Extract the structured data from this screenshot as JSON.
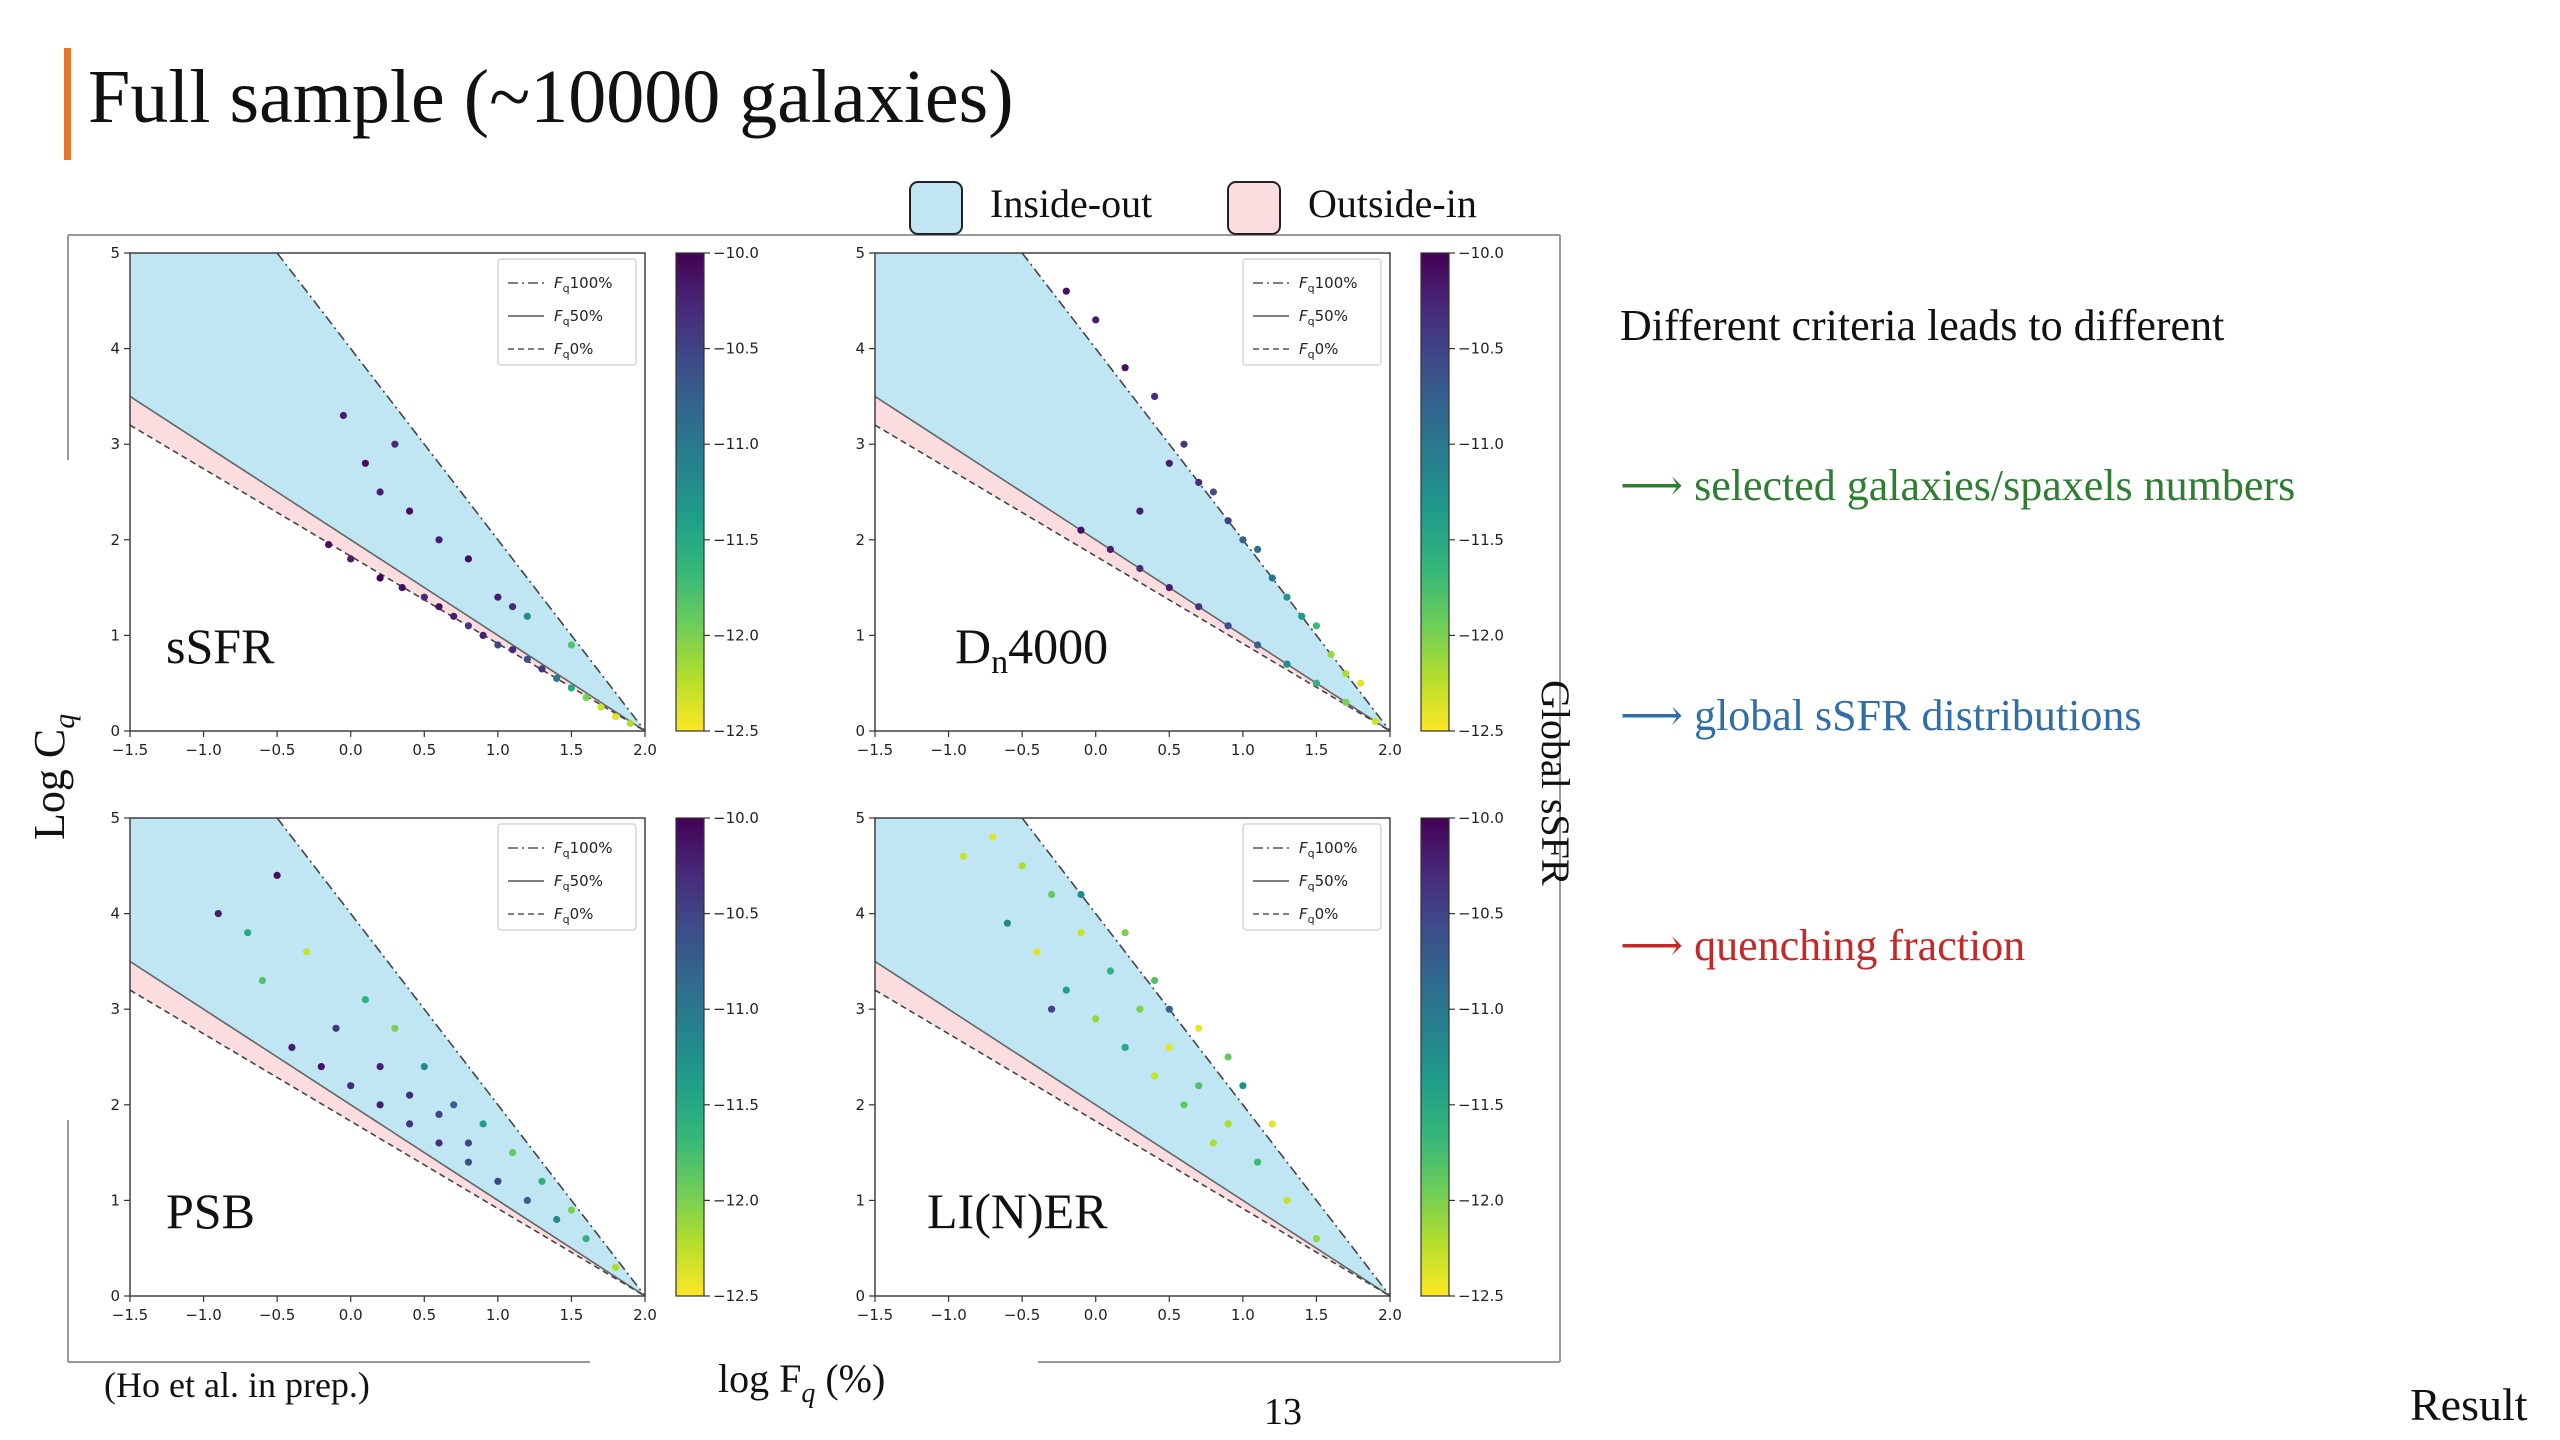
{
  "slide": {
    "title": "Full sample (~10000 galaxies)",
    "citation": "(Ho et al. in prep.)",
    "page_number": "13",
    "section": "Result",
    "accent_color": "#e8772e"
  },
  "bullets": [
    {
      "text": "Different criteria leads to different",
      "color": "#111111"
    },
    {
      "text": "⟶ selected galaxies/spaxels numbers",
      "color": "#2e7d32"
    },
    {
      "text": "⟶ global sSFR distributions",
      "color": "#2f6ea8"
    },
    {
      "text": "⟶ quenching fraction",
      "color": "#c62828"
    }
  ],
  "figure": {
    "legend": [
      {
        "label": "Inside-out",
        "color": "#bfe6f2"
      },
      {
        "label": "Outside-in",
        "color": "#fbdde0"
      }
    ],
    "ylabel": "Log C",
    "ylabel_sub": "q",
    "xlabel": "log F",
    "xlabel_sub": "q",
    "xlabel_unit": " (%)",
    "colorbar_label": "Global sSFR"
  },
  "chart_data": {
    "type": "scatter",
    "x_range": [
      -1.5,
      2.0
    ],
    "y_range": [
      0,
      5
    ],
    "x_ticks": [
      "−1.5",
      "−1.0",
      "−0.5",
      "0.0",
      "0.5",
      "1.0",
      "1.5",
      "2.0"
    ],
    "y_ticks": [
      "0",
      "1",
      "2",
      "3",
      "4",
      "5"
    ],
    "color_range": [
      -12.5,
      -10.0
    ],
    "colorbar_ticks": [
      "−10.0",
      "−10.5",
      "−11.0",
      "−11.5",
      "−12.0",
      "−12.5"
    ],
    "line_legend": [
      {
        "label": "F",
        "sub": "q",
        "suffix": "100%",
        "style": "dashdot"
      },
      {
        "label": "F",
        "sub": "q",
        "suffix": "50%",
        "style": "solid"
      },
      {
        "label": "F",
        "sub": "q",
        "suffix": "0%",
        "style": "dashed"
      }
    ],
    "lines": {
      "fq100": {
        "x": [
          -0.5,
          2.0
        ],
        "y": [
          5.0,
          0.0
        ]
      },
      "fq50": {
        "x": [
          -1.5,
          2.0
        ],
        "y": [
          3.5,
          0.0
        ]
      },
      "fq0": {
        "x": [
          -1.5,
          2.0
        ],
        "y": [
          3.2,
          0.0
        ]
      }
    },
    "panels": [
      {
        "name": "sSFR",
        "points": [
          [
            -0.15,
            1.95,
            -10.1
          ],
          [
            0.0,
            1.8,
            -10.2
          ],
          [
            0.2,
            1.6,
            -10.0
          ],
          [
            0.35,
            1.5,
            -10.1
          ],
          [
            0.5,
            1.4,
            -10.3
          ],
          [
            0.6,
            1.3,
            -10.1
          ],
          [
            0.7,
            1.2,
            -10.2
          ],
          [
            0.8,
            1.1,
            -10.4
          ],
          [
            0.9,
            1.0,
            -10.2
          ],
          [
            1.0,
            0.9,
            -10.5
          ],
          [
            1.1,
            0.85,
            -10.3
          ],
          [
            1.2,
            0.75,
            -10.6
          ],
          [
            1.3,
            0.65,
            -10.4
          ],
          [
            1.4,
            0.55,
            -11.0
          ],
          [
            1.5,
            0.45,
            -11.5
          ],
          [
            1.6,
            0.35,
            -12.0
          ],
          [
            1.7,
            0.25,
            -12.3
          ],
          [
            1.8,
            0.15,
            -12.4
          ],
          [
            1.9,
            0.08,
            -12.2
          ],
          [
            1.0,
            1.4,
            -10.2
          ],
          [
            1.1,
            1.3,
            -10.3
          ],
          [
            0.8,
            1.8,
            -10.1
          ],
          [
            0.6,
            2.0,
            -10.2
          ],
          [
            0.4,
            2.3,
            -10.1
          ],
          [
            0.2,
            2.5,
            -10.2
          ],
          [
            0.1,
            2.8,
            -10.1
          ],
          [
            0.3,
            3.0,
            -10.3
          ],
          [
            -0.05,
            3.3,
            -10.2
          ],
          [
            1.2,
            1.2,
            -11.2
          ],
          [
            1.5,
            0.9,
            -11.8
          ]
        ]
      },
      {
        "name": "Dn4000",
        "points": [
          [
            -0.1,
            2.1,
            -10.1
          ],
          [
            0.1,
            1.9,
            -10.2
          ],
          [
            0.3,
            1.7,
            -10.3
          ],
          [
            0.5,
            1.5,
            -10.2
          ],
          [
            0.7,
            1.3,
            -10.4
          ],
          [
            0.9,
            1.1,
            -10.6
          ],
          [
            1.1,
            0.9,
            -10.8
          ],
          [
            1.3,
            0.7,
            -11.2
          ],
          [
            1.5,
            0.5,
            -11.6
          ],
          [
            1.7,
            0.3,
            -12.0
          ],
          [
            1.9,
            0.1,
            -12.3
          ],
          [
            0.5,
            2.8,
            -10.2
          ],
          [
            0.7,
            2.6,
            -10.3
          ],
          [
            0.9,
            2.2,
            -10.5
          ],
          [
            1.1,
            1.9,
            -10.9
          ],
          [
            1.3,
            1.4,
            -11.3
          ],
          [
            1.5,
            1.1,
            -11.7
          ],
          [
            1.6,
            0.8,
            -12.1
          ],
          [
            1.8,
            0.5,
            -12.4
          ],
          [
            0.2,
            3.8,
            -10.1
          ],
          [
            0.0,
            4.3,
            -10.2
          ],
          [
            0.4,
            3.5,
            -10.3
          ],
          [
            0.6,
            3.0,
            -10.4
          ],
          [
            0.8,
            2.5,
            -10.6
          ],
          [
            1.0,
            2.0,
            -10.8
          ],
          [
            1.2,
            1.6,
            -11.0
          ],
          [
            1.4,
            1.2,
            -11.4
          ],
          [
            -0.2,
            4.6,
            -10.1
          ],
          [
            1.7,
            0.6,
            -12.2
          ],
          [
            0.3,
            2.3,
            -10.2
          ]
        ]
      },
      {
        "name": "PSB",
        "points": [
          [
            -0.4,
            2.6,
            -10.2
          ],
          [
            -0.2,
            2.4,
            -10.1
          ],
          [
            0.0,
            2.2,
            -10.3
          ],
          [
            0.2,
            2.0,
            -10.2
          ],
          [
            0.4,
            1.8,
            -10.4
          ],
          [
            0.6,
            1.6,
            -10.3
          ],
          [
            0.8,
            1.4,
            -10.6
          ],
          [
            1.0,
            1.2,
            -10.5
          ],
          [
            1.2,
            1.0,
            -10.8
          ],
          [
            1.4,
            0.8,
            -11.2
          ],
          [
            1.6,
            0.6,
            -11.6
          ],
          [
            1.8,
            0.3,
            -12.2
          ],
          [
            -0.6,
            3.3,
            -11.8
          ],
          [
            -0.3,
            3.6,
            -12.3
          ],
          [
            0.1,
            3.1,
            -11.6
          ],
          [
            0.3,
            2.8,
            -12.0
          ],
          [
            0.5,
            2.4,
            -11.2
          ],
          [
            0.7,
            2.0,
            -10.8
          ],
          [
            0.9,
            1.8,
            -11.4
          ],
          [
            1.1,
            1.5,
            -11.9
          ],
          [
            -0.9,
            4.0,
            -10.2
          ],
          [
            -0.5,
            4.4,
            -10.1
          ],
          [
            -0.7,
            3.8,
            -11.5
          ],
          [
            0.2,
            2.4,
            -10.2
          ],
          [
            0.4,
            2.1,
            -10.3
          ],
          [
            0.6,
            1.9,
            -10.5
          ],
          [
            1.3,
            1.2,
            -11.6
          ],
          [
            1.5,
            0.9,
            -12.0
          ],
          [
            -0.1,
            2.8,
            -10.4
          ],
          [
            0.8,
            1.6,
            -10.5
          ]
        ]
      },
      {
        "name": "LI(N)ER",
        "points": [
          [
            -0.7,
            4.8,
            -12.4
          ],
          [
            -0.5,
            4.5,
            -12.2
          ],
          [
            -0.3,
            4.2,
            -11.9
          ],
          [
            -0.1,
            3.8,
            -12.3
          ],
          [
            0.1,
            3.4,
            -11.6
          ],
          [
            0.3,
            3.0,
            -12.0
          ],
          [
            0.5,
            2.6,
            -12.4
          ],
          [
            0.7,
            2.2,
            -11.8
          ],
          [
            0.9,
            1.8,
            -12.2
          ],
          [
            1.1,
            1.4,
            -11.7
          ],
          [
            1.3,
            1.0,
            -12.3
          ],
          [
            1.5,
            0.6,
            -12.1
          ],
          [
            -0.6,
            3.9,
            -11.2
          ],
          [
            -0.4,
            3.6,
            -12.4
          ],
          [
            -0.2,
            3.2,
            -11.4
          ],
          [
            0.0,
            2.9,
            -12.1
          ],
          [
            0.2,
            2.6,
            -11.5
          ],
          [
            0.4,
            2.3,
            -12.3
          ],
          [
            0.6,
            2.0,
            -11.9
          ],
          [
            0.8,
            1.6,
            -12.2
          ],
          [
            1.0,
            2.2,
            -11.3
          ],
          [
            0.7,
            2.8,
            -12.4
          ],
          [
            0.4,
            3.3,
            -11.8
          ],
          [
            0.2,
            3.8,
            -12.0
          ],
          [
            -0.1,
            4.2,
            -11.2
          ],
          [
            -0.9,
            4.6,
            -12.3
          ],
          [
            0.9,
            2.5,
            -11.9
          ],
          [
            1.2,
            1.8,
            -12.4
          ],
          [
            0.5,
            3.0,
            -10.8
          ],
          [
            -0.3,
            3.0,
            -10.5
          ]
        ]
      }
    ]
  }
}
